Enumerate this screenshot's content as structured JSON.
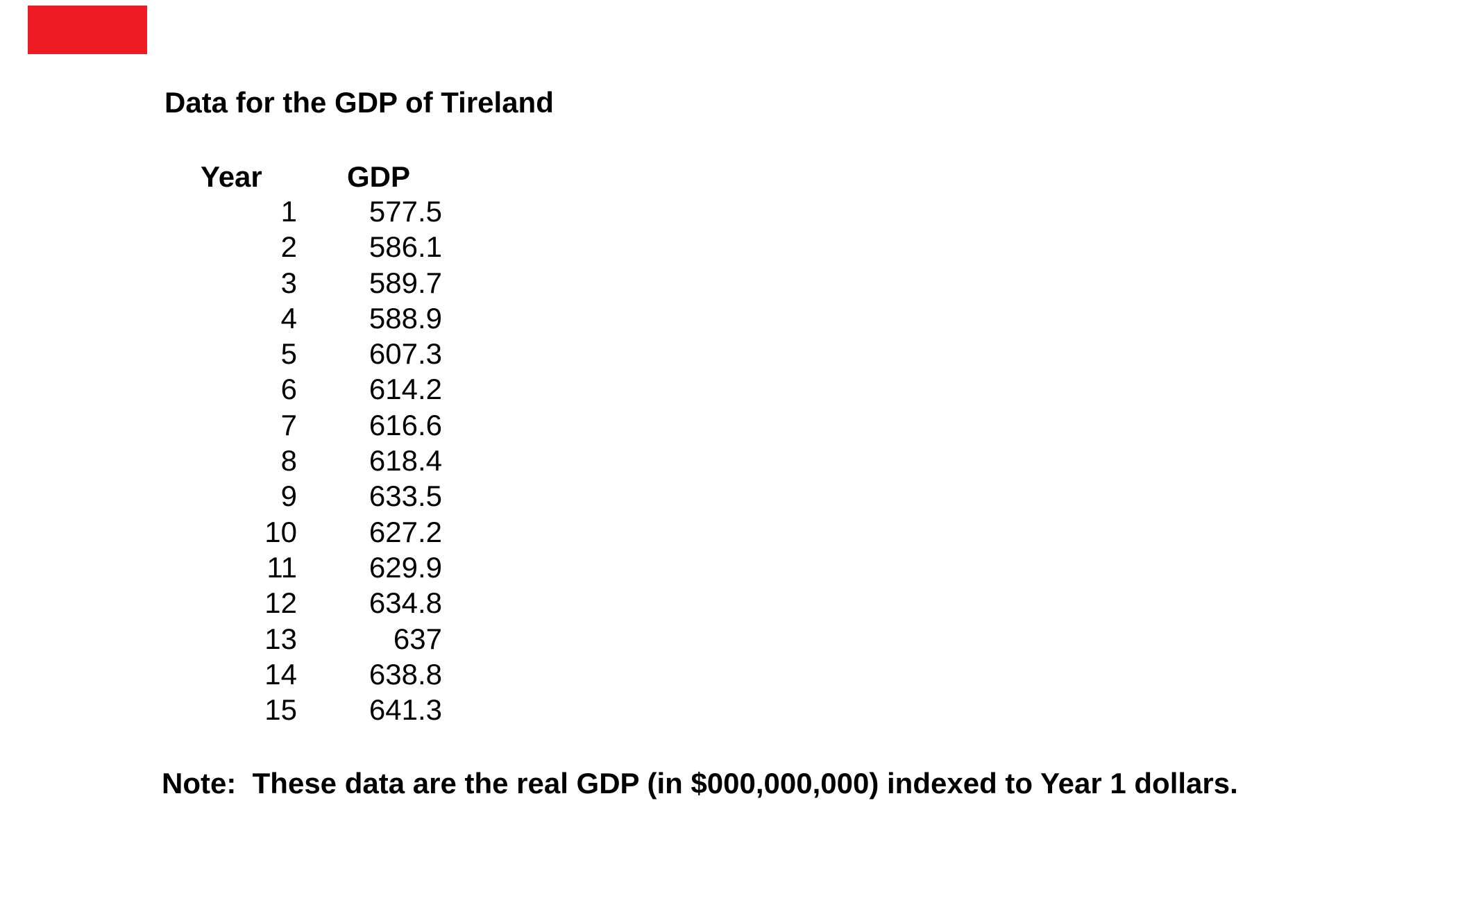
{
  "document": {
    "title": "Data for the GDP of Tireland",
    "note": "Note:  These data are the real GDP (in $000,000,000) indexed to Year 1 dollars.",
    "marker_color": "#ed1c24"
  },
  "table": {
    "year_header": "Year",
    "gdp_header": "GDP",
    "rows": [
      {
        "year": "1",
        "gdp": "577.5"
      },
      {
        "year": "2",
        "gdp": "586.1"
      },
      {
        "year": "3",
        "gdp": "589.7"
      },
      {
        "year": "4",
        "gdp": "588.9"
      },
      {
        "year": "5",
        "gdp": "607.3"
      },
      {
        "year": "6",
        "gdp": "614.2"
      },
      {
        "year": "7",
        "gdp": "616.6"
      },
      {
        "year": "8",
        "gdp": "618.4"
      },
      {
        "year": "9",
        "gdp": "633.5"
      },
      {
        "year": "10",
        "gdp": "627.2"
      },
      {
        "year": "11",
        "gdp": "629.9"
      },
      {
        "year": "12",
        "gdp": "634.8"
      },
      {
        "year": "13",
        "gdp": "637"
      },
      {
        "year": "14",
        "gdp": "638.8"
      },
      {
        "year": "15",
        "gdp": "641.3"
      }
    ]
  },
  "chart_data": {
    "type": "table",
    "title": "Data for the GDP of Tireland",
    "columns": [
      "Year",
      "GDP"
    ],
    "x": [
      1,
      2,
      3,
      4,
      5,
      6,
      7,
      8,
      9,
      10,
      11,
      12,
      13,
      14,
      15
    ],
    "values": [
      577.5,
      586.1,
      589.7,
      588.9,
      607.3,
      614.2,
      616.6,
      618.4,
      633.5,
      627.2,
      629.9,
      634.8,
      637,
      638.8,
      641.3
    ],
    "note": "Note:  These data are the real GDP (in $000,000,000) indexed to Year 1 dollars."
  }
}
